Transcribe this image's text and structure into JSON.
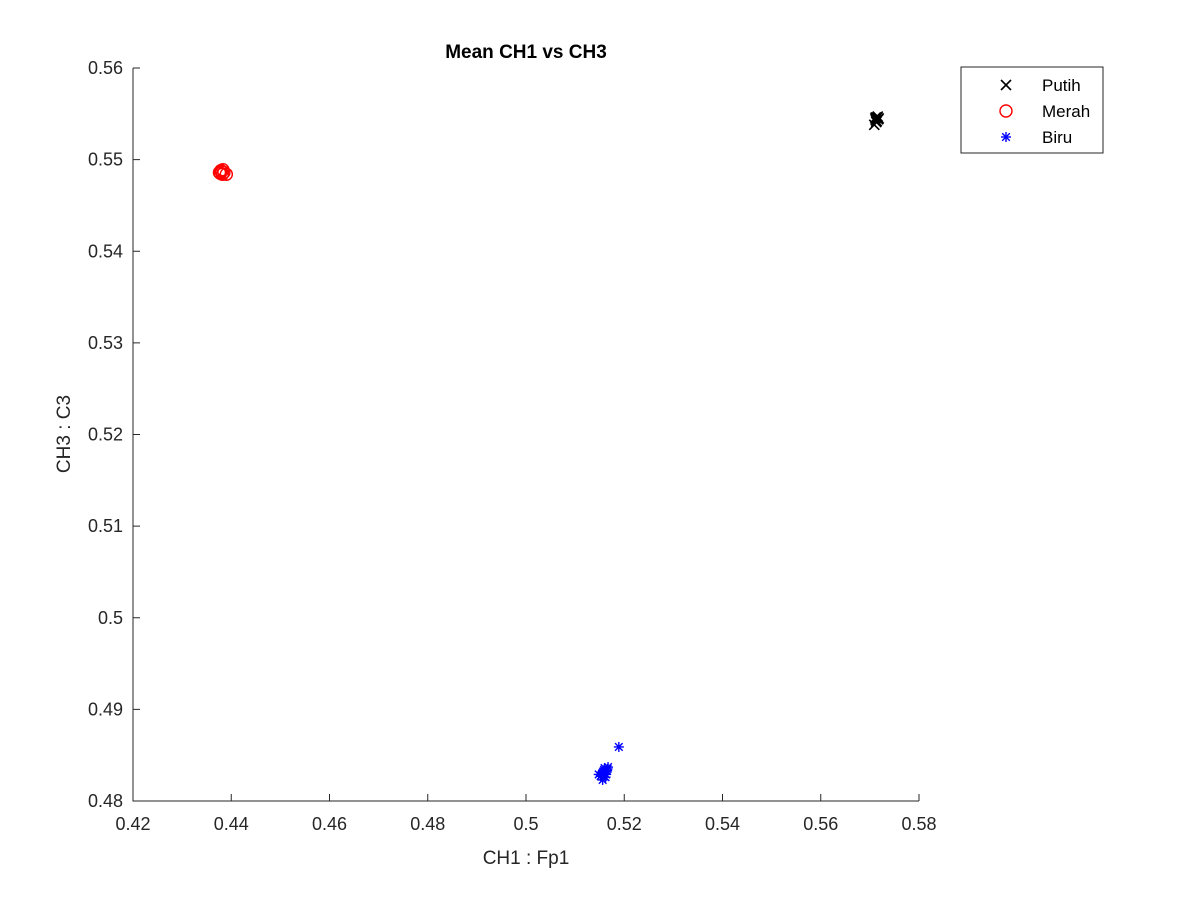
{
  "chart_data": {
    "type": "scatter",
    "title": "Mean CH1 vs CH3",
    "xlabel": "CH1 : Fp1",
    "ylabel": "CH3 : C3",
    "xlim": [
      0.42,
      0.58
    ],
    "ylim": [
      0.48,
      0.56
    ],
    "xticks": [
      0.42,
      0.44,
      0.46,
      0.48,
      0.5,
      0.52,
      0.54,
      0.56,
      0.58
    ],
    "xtick_labels": [
      "0.42",
      "0.44",
      "0.46",
      "0.48",
      "0.5",
      "0.52",
      "0.54",
      "0.56",
      "0.58"
    ],
    "yticks": [
      0.48,
      0.49,
      0.5,
      0.51,
      0.52,
      0.53,
      0.54,
      0.55,
      0.56
    ],
    "ytick_labels": [
      "0.48",
      "0.49",
      "0.5",
      "0.51",
      "0.52",
      "0.53",
      "0.54",
      "0.55",
      "0.56"
    ],
    "grid": false,
    "legend_position": "top-right",
    "series": [
      {
        "name": "Putih",
        "marker": "x",
        "color": "#000000",
        "points": [
          [
            0.5712,
            0.5543
          ],
          [
            0.5715,
            0.5546
          ],
          [
            0.5709,
            0.5538
          ],
          [
            0.5718,
            0.5545
          ],
          [
            0.5713,
            0.5541
          ],
          [
            0.5716,
            0.5547
          ],
          [
            0.5711,
            0.5545
          ],
          [
            0.5714,
            0.5542
          ],
          [
            0.5717,
            0.5544
          ],
          [
            0.5712,
            0.5546
          ]
        ]
      },
      {
        "name": "Merah",
        "marker": "o",
        "color": "#ff0000",
        "points": [
          [
            0.4378,
            0.5485
          ],
          [
            0.4383,
            0.5489
          ],
          [
            0.439,
            0.5484
          ],
          [
            0.438,
            0.5487
          ],
          [
            0.4385,
            0.5486
          ],
          [
            0.4376,
            0.5486
          ],
          [
            0.4382,
            0.5484
          ],
          [
            0.4379,
            0.5488
          ]
        ]
      },
      {
        "name": "Biru",
        "marker": "*",
        "color": "#0000ff",
        "points": [
          [
            0.5189,
            0.4859
          ],
          [
            0.5148,
            0.4829
          ],
          [
            0.5158,
            0.4831
          ],
          [
            0.5162,
            0.4826
          ],
          [
            0.516,
            0.4836
          ],
          [
            0.5156,
            0.4823
          ],
          [
            0.5165,
            0.4833
          ],
          [
            0.5153,
            0.4828
          ],
          [
            0.5161,
            0.483
          ],
          [
            0.5167,
            0.4837
          ],
          [
            0.5157,
            0.4832
          ],
          [
            0.5152,
            0.4827
          ],
          [
            0.5163,
            0.4829
          ],
          [
            0.5159,
            0.4834
          ],
          [
            0.5155,
            0.483
          ],
          [
            0.5166,
            0.4835
          ]
        ]
      }
    ]
  }
}
